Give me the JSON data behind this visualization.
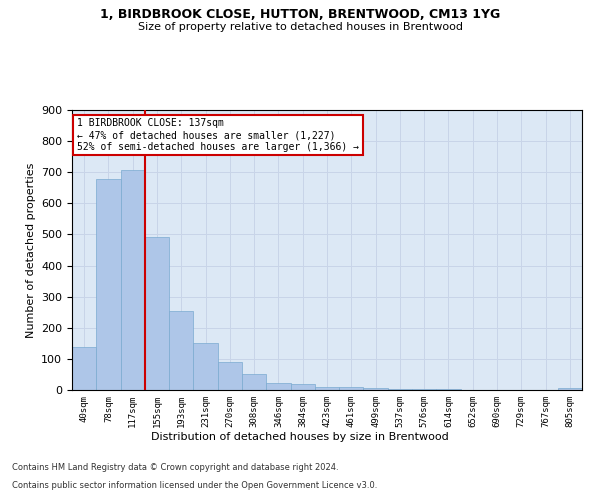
{
  "title1": "1, BIRDBROOK CLOSE, HUTTON, BRENTWOOD, CM13 1YG",
  "title2": "Size of property relative to detached houses in Brentwood",
  "xlabel": "Distribution of detached houses by size in Brentwood",
  "ylabel": "Number of detached properties",
  "footnote1": "Contains HM Land Registry data © Crown copyright and database right 2024.",
  "footnote2": "Contains public sector information licensed under the Open Government Licence v3.0.",
  "bar_color": "#aec6e8",
  "bar_edge_color": "#7aaad0",
  "vline_color": "#cc0000",
  "vline_x": 2,
  "annotation_text": "1 BIRDBROOK CLOSE: 137sqm\n← 47% of detached houses are smaller (1,227)\n52% of semi-detached houses are larger (1,366) →",
  "annotation_box_color": "#cc0000",
  "categories": [
    "40sqm",
    "78sqm",
    "117sqm",
    "155sqm",
    "193sqm",
    "231sqm",
    "270sqm",
    "308sqm",
    "346sqm",
    "384sqm",
    "423sqm",
    "461sqm",
    "499sqm",
    "537sqm",
    "576sqm",
    "614sqm",
    "652sqm",
    "690sqm",
    "729sqm",
    "767sqm",
    "805sqm"
  ],
  "values": [
    137,
    677,
    706,
    493,
    253,
    150,
    90,
    52,
    22,
    18,
    10,
    10,
    6,
    4,
    3,
    2,
    1,
    1,
    1,
    1,
    6
  ],
  "ylim": [
    0,
    900
  ],
  "yticks": [
    0,
    100,
    200,
    300,
    400,
    500,
    600,
    700,
    800,
    900
  ],
  "bg_color": "#ffffff",
  "grid_color": "#c8d4e8",
  "ax_bg_color": "#dce8f5"
}
